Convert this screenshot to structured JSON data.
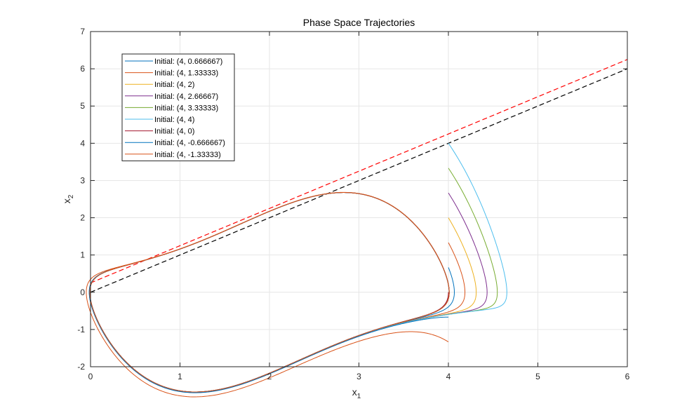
{
  "chart_data": {
    "type": "line",
    "title": "Phase Space Trajectories",
    "xlabel": {
      "base": "x",
      "sub": "1"
    },
    "ylabel": {
      "base": "x",
      "sub": "2"
    },
    "xlim": [
      0,
      6
    ],
    "ylim": [
      -2,
      7
    ],
    "xticks": [
      0,
      1,
      2,
      3,
      4,
      5,
      6
    ],
    "yticks": [
      -2,
      -1,
      0,
      1,
      2,
      3,
      4,
      5,
      6,
      7
    ],
    "grid": true,
    "legend_position": "top-left",
    "series": [
      {
        "name": "Initial: (4, 0.666667)",
        "color": "#0072BD",
        "x0": 4,
        "y0": 0.666667
      },
      {
        "name": "Initial: (4, 1.33333)",
        "color": "#D95319",
        "x0": 4,
        "y0": 1.33333
      },
      {
        "name": "Initial: (4, 2)",
        "color": "#EDB120",
        "x0": 4,
        "y0": 2
      },
      {
        "name": "Initial: (4, 2.66667)",
        "color": "#7E2F8E",
        "x0": 4,
        "y0": 2.66667
      },
      {
        "name": "Initial: (4, 3.33333)",
        "color": "#77AC30",
        "x0": 4,
        "y0": 3.33333
      },
      {
        "name": "Initial: (4, 4)",
        "color": "#4DBEEE",
        "x0": 4,
        "y0": 4
      },
      {
        "name": "Initial: (4, 0)",
        "color": "#A2142F",
        "x0": 4,
        "y0": 0
      },
      {
        "name": "Initial: (4, -0.666667)",
        "color": "#0072BD",
        "x0": 4,
        "y0": -0.666667
      },
      {
        "name": "Initial: (4, -1.33333)",
        "color": "#D95319",
        "x0": 4,
        "y0": -1.33333
      }
    ],
    "reference_lines": [
      {
        "color": "#000000",
        "style": "dashed",
        "x": [
          0,
          6
        ],
        "y": [
          0,
          6
        ]
      },
      {
        "color": "#FF0000",
        "style": "dashed",
        "x": [
          0,
          6
        ],
        "y": [
          0.25,
          6.25
        ]
      }
    ]
  }
}
